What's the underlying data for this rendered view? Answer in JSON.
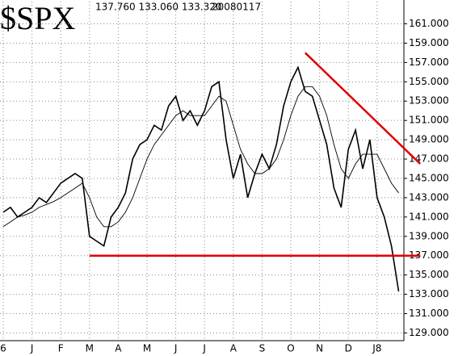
{
  "chart_data": {
    "type": "line",
    "title": "$SPX",
    "subtitle": "137.760 133.060 133.320",
    "date": "20080117",
    "categories": [
      "6",
      null,
      null,
      null,
      "J",
      null,
      null,
      null,
      "F",
      null,
      null,
      null,
      "M",
      null,
      null,
      null,
      "A",
      null,
      null,
      null,
      "M",
      null,
      null,
      null,
      "J",
      null,
      null,
      null,
      "J",
      null,
      null,
      null,
      "A",
      null,
      null,
      null,
      "S",
      null,
      null,
      null,
      "O",
      null,
      null,
      null,
      "N",
      null,
      null,
      null,
      "D",
      null,
      null,
      null,
      "J8",
      null,
      null,
      null
    ],
    "series": [
      {
        "color": "#000000",
        "width": 1.6,
        "values": [
          141.5,
          142,
          141,
          141.5,
          142,
          143,
          142.5,
          143.5,
          144.5,
          145,
          145.5,
          145,
          139,
          138.5,
          138,
          141,
          142,
          143.5,
          147,
          148.5,
          149,
          150.5,
          150,
          152.5,
          153.5,
          151,
          152,
          150.5,
          152,
          154.5,
          155,
          149,
          145,
          147.5,
          143,
          145.5,
          147.5,
          146,
          148.5,
          152.5,
          155,
          156.5,
          154,
          153.5,
          151,
          148.5,
          144,
          142,
          148,
          150,
          146,
          149,
          143,
          141,
          138,
          133.3
        ]
      },
      {
        "color": "#000000",
        "width": 0.9,
        "values": [
          140,
          140.5,
          141,
          141.2,
          141.5,
          142,
          142.3,
          142.6,
          143,
          143.5,
          144,
          144.5,
          143,
          141,
          140,
          140,
          140.5,
          141.5,
          143,
          145,
          147,
          148.5,
          149.5,
          150.5,
          151.5,
          152,
          151.5,
          151.5,
          151.5,
          152.5,
          153.5,
          153,
          150.5,
          148,
          146.5,
          145.5,
          145.5,
          146,
          147,
          149,
          151.5,
          153.5,
          154.5,
          154.5,
          153.5,
          151.5,
          148.5,
          146,
          145,
          146.5,
          147.5,
          147.5,
          147.5,
          146,
          144.5,
          143.5
        ]
      }
    ],
    "trend_lines": [
      {
        "color": "#e00000",
        "x": [
          12,
          58
        ],
        "values": [
          137,
          137
        ]
      },
      {
        "color": "#e00000",
        "x": [
          42,
          58
        ],
        "values": [
          158,
          146.5
        ]
      }
    ],
    "ylim": [
      128.2,
      163.3
    ],
    "yticks": [
      {
        "value": 129,
        "label": "129.000"
      },
      {
        "value": 131,
        "label": "131.000"
      },
      {
        "value": 133,
        "label": "133.000"
      },
      {
        "value": 135,
        "label": "135.000"
      },
      {
        "value": 137,
        "label": "137.000"
      },
      {
        "value": 139,
        "label": "139.000"
      },
      {
        "value": 141,
        "label": "141.000"
      },
      {
        "value": 143,
        "label": "143.000"
      },
      {
        "value": 145,
        "label": "145.000"
      },
      {
        "value": 147,
        "label": "147.000"
      },
      {
        "value": 149,
        "label": "149.000"
      },
      {
        "value": 151,
        "label": "151.000"
      },
      {
        "value": 153,
        "label": "153.000"
      },
      {
        "value": 155,
        "label": "155.000"
      },
      {
        "value": 157,
        "label": "157.000"
      },
      {
        "value": 159,
        "label": "159.000"
      },
      {
        "value": 161,
        "label": "161.000"
      }
    ],
    "grid": true
  }
}
